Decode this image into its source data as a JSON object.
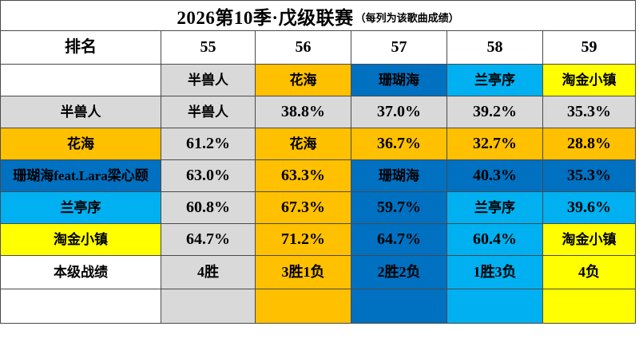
{
  "title": {
    "main": "2026第10季·戊级联赛",
    "sub": "（每列为该歌曲成绩）"
  },
  "palette": {
    "gray": "#D9D9D9",
    "orange": "#FFC000",
    "blue": "#0070C0",
    "lightblue": "#00B0F0",
    "yellow": "#FFFF00",
    "white": "#FFFFFF"
  },
  "header_row": {
    "rank_label": "排名",
    "song_ids": [
      "55",
      "56",
      "57",
      "58",
      "59"
    ]
  },
  "song_header_row": {
    "cells": [
      {
        "text": "半兽人",
        "color": "gray"
      },
      {
        "text": "花海",
        "color": "orange"
      },
      {
        "text": "珊瑚海",
        "color": "blue"
      },
      {
        "text": "兰亭序",
        "color": "lightblue"
      },
      {
        "text": "淘金小镇",
        "color": "yellow"
      }
    ]
  },
  "matrix_rows": [
    {
      "label": "半兽人",
      "label_color": "gray",
      "cells": [
        {
          "text": "半兽人",
          "color": "gray"
        },
        {
          "text": "38.8%",
          "color": "gray"
        },
        {
          "text": "37.0%",
          "color": "gray"
        },
        {
          "text": "39.2%",
          "color": "gray"
        },
        {
          "text": "35.3%",
          "color": "gray"
        }
      ]
    },
    {
      "label": "花海",
      "label_color": "orange",
      "cells": [
        {
          "text": "61.2%",
          "color": "gray"
        },
        {
          "text": "花海",
          "color": "orange"
        },
        {
          "text": "36.7%",
          "color": "orange"
        },
        {
          "text": "32.7%",
          "color": "orange"
        },
        {
          "text": "28.8%",
          "color": "orange"
        }
      ]
    },
    {
      "label": "珊瑚海feat.Lara梁心颐",
      "label_color": "blue",
      "cells": [
        {
          "text": "63.0%",
          "color": "gray"
        },
        {
          "text": "63.3%",
          "color": "orange"
        },
        {
          "text": "珊瑚海",
          "color": "blue"
        },
        {
          "text": "40.3%",
          "color": "blue"
        },
        {
          "text": "35.3%",
          "color": "blue"
        }
      ]
    },
    {
      "label": "兰亭序",
      "label_color": "lightblue",
      "cells": [
        {
          "text": "60.8%",
          "color": "gray"
        },
        {
          "text": "67.3%",
          "color": "orange"
        },
        {
          "text": "59.7%",
          "color": "blue"
        },
        {
          "text": "兰亭序",
          "color": "lightblue"
        },
        {
          "text": "39.6%",
          "color": "lightblue"
        }
      ]
    },
    {
      "label": "淘金小镇",
      "label_color": "yellow",
      "cells": [
        {
          "text": "64.7%",
          "color": "gray"
        },
        {
          "text": "71.2%",
          "color": "orange"
        },
        {
          "text": "64.7%",
          "color": "blue"
        },
        {
          "text": "60.4%",
          "color": "lightblue"
        },
        {
          "text": "淘金小镇",
          "color": "yellow"
        }
      ]
    }
  ],
  "record_row": {
    "label": "本级战绩",
    "label_color": "white",
    "cells": [
      {
        "text": "4胜",
        "color": "gray"
      },
      {
        "text": "3胜1负",
        "color": "orange"
      },
      {
        "text": "2胜2负",
        "color": "blue"
      },
      {
        "text": "1胜3负",
        "color": "lightblue"
      },
      {
        "text": "4负",
        "color": "yellow"
      }
    ]
  },
  "footer_row": {
    "label_color": "white",
    "cell_colors": [
      "gray",
      "orange",
      "blue",
      "lightblue",
      "yellow"
    ]
  },
  "chart_data": {
    "type": "table",
    "title": "2026第10季·戊级联赛（每列为该歌曲成绩）",
    "columns": [
      {
        "rank": "55",
        "song": "半兽人"
      },
      {
        "rank": "56",
        "song": "花海"
      },
      {
        "rank": "57",
        "song": "珊瑚海"
      },
      {
        "rank": "58",
        "song": "兰亭序"
      },
      {
        "rank": "59",
        "song": "淘金小镇"
      }
    ],
    "row_songs": [
      "半兽人",
      "花海",
      "珊瑚海feat.Lara梁心颐",
      "兰亭序",
      "淘金小镇"
    ],
    "matrix_percent_column_song_vs_row_song": [
      [
        null,
        38.8,
        37.0,
        39.2,
        35.3
      ],
      [
        61.2,
        null,
        36.7,
        32.7,
        28.8
      ],
      [
        63.0,
        63.3,
        null,
        40.3,
        35.3
      ],
      [
        60.8,
        67.3,
        59.7,
        null,
        39.6
      ],
      [
        64.7,
        71.2,
        64.7,
        60.4,
        null
      ]
    ],
    "records_label": "本级战绩",
    "records": [
      "4胜",
      "3胜1负",
      "2胜2负",
      "1胜3负",
      "4负"
    ]
  }
}
